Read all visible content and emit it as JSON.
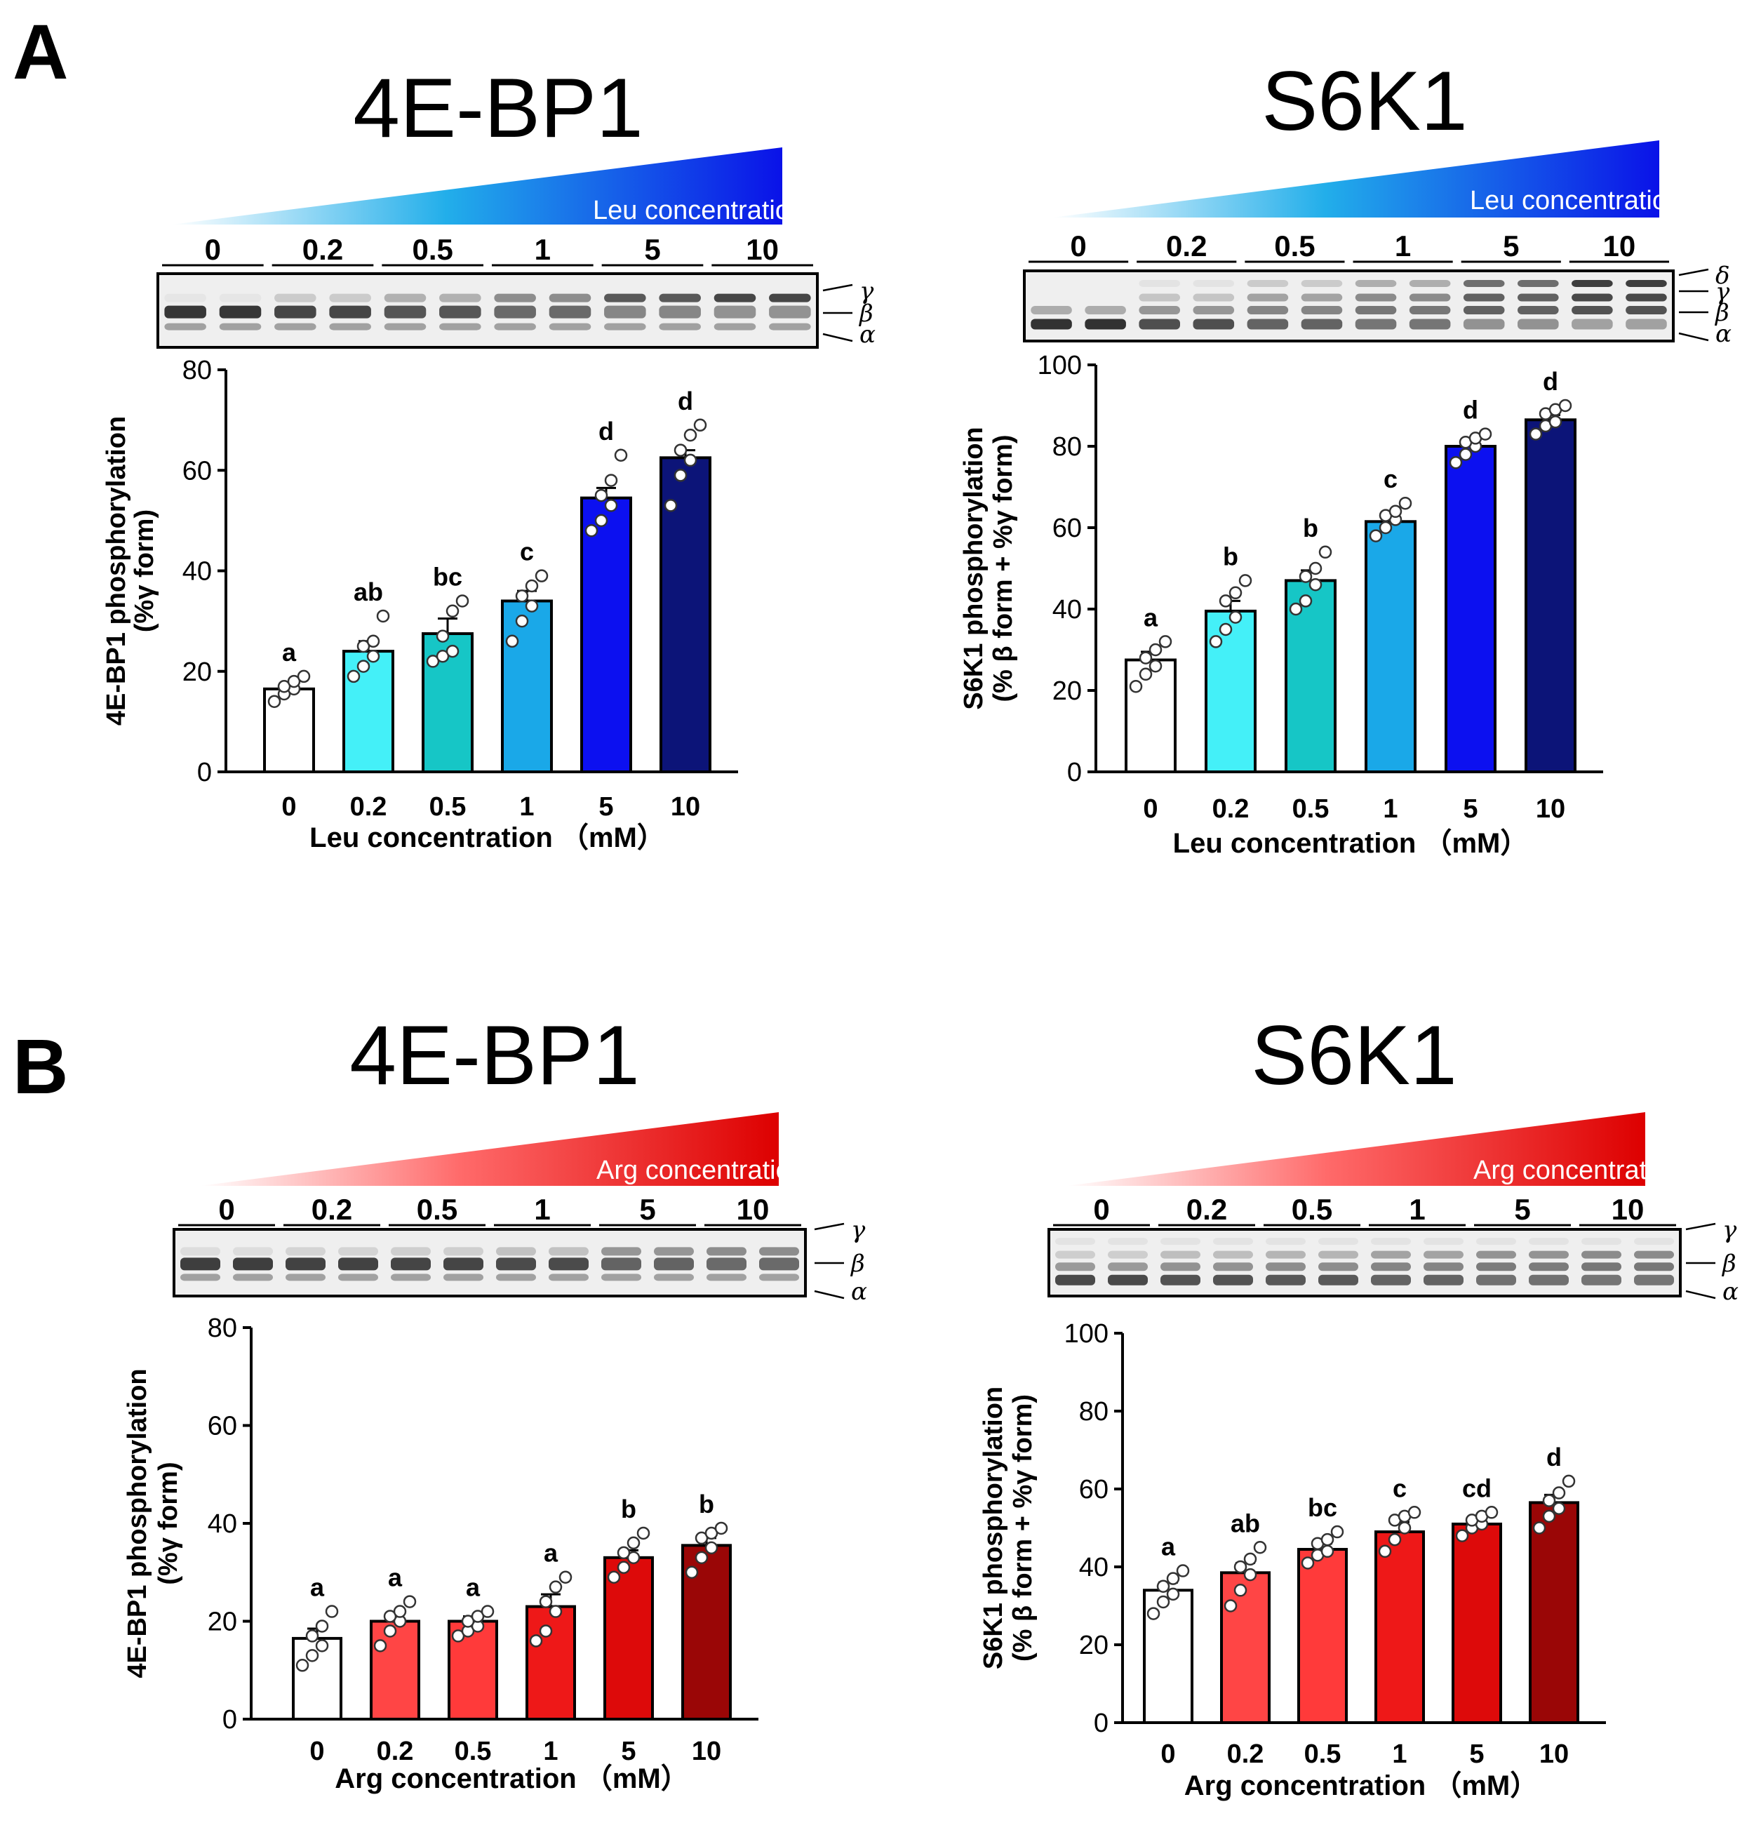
{
  "panel_labels": [
    "A",
    "B"
  ],
  "colors": {
    "leu_gradient": [
      "#ffffff",
      "#22aeea",
      "#0a12e8"
    ],
    "arg_gradient": [
      "#ffffff",
      "#ff6a6a",
      "#dd0000"
    ],
    "leu_bars": [
      "#ffffff",
      "#44f0f8",
      "#16c6c6",
      "#1aa8e8",
      "#0c10f0",
      "#0c1478"
    ],
    "arg_bars": [
      "#ffffff",
      "#ff4545",
      "#ff3a3a",
      "#ee1818",
      "#dd0a0a",
      "#9a0606"
    ]
  },
  "chart_data": [
    {
      "panel": "A",
      "type": "bar",
      "title": "4E-BP1",
      "wedge_label": "Leu concentration (mM)",
      "blot_groups": [
        "0",
        "0.2",
        "0.5",
        "1",
        "5",
        "10"
      ],
      "blot_forms": [
        "γ",
        "β",
        "α"
      ],
      "categories": [
        "0",
        "0.2",
        "0.5",
        "1",
        "5",
        "10"
      ],
      "values": [
        16.5,
        24,
        27.5,
        34,
        54.5,
        62.5
      ],
      "errors": [
        1,
        2,
        3,
        2,
        2,
        1.5
      ],
      "points": [
        [
          14,
          15.5,
          16.5,
          17,
          18,
          19
        ],
        [
          19,
          21,
          23,
          25,
          26,
          31
        ],
        [
          22,
          23,
          24,
          27,
          32,
          34
        ],
        [
          26,
          30,
          33,
          35,
          37,
          39
        ],
        [
          48,
          50,
          53,
          55,
          58,
          63
        ],
        [
          53,
          59,
          62,
          64,
          67,
          69
        ]
      ],
      "letters": [
        "a",
        "ab",
        "bc",
        "c",
        "d",
        "d"
      ],
      "ylim": [
        0,
        80
      ],
      "yticks": [
        0,
        20,
        40,
        60,
        80
      ],
      "ylabel_line1": "4E-BP1 phosphorylation",
      "ylabel_line2": "(%γ form)",
      "xlabel": "Leu concentration （mM）"
    },
    {
      "panel": "A",
      "type": "bar",
      "title": "S6K1",
      "wedge_label": "Leu concentration (mM)",
      "blot_groups": [
        "0",
        "0.2",
        "0.5",
        "1",
        "5",
        "10"
      ],
      "blot_forms": [
        "δ",
        "γ",
        "β",
        "α"
      ],
      "categories": [
        "0",
        "0.2",
        "0.5",
        "1",
        "5",
        "10"
      ],
      "values": [
        27.5,
        39.5,
        47,
        61.5,
        80,
        86.5
      ],
      "errors": [
        2,
        2.5,
        2.5,
        1.5,
        1,
        1.2
      ],
      "points": [
        [
          21,
          24,
          26,
          28,
          30,
          32
        ],
        [
          32,
          35,
          38,
          42,
          44,
          47
        ],
        [
          40,
          42,
          46,
          48,
          50,
          54
        ],
        [
          58,
          60,
          62,
          63,
          64,
          66
        ],
        [
          76,
          78,
          80,
          81,
          82,
          83
        ],
        [
          83,
          85,
          86,
          88,
          89,
          90
        ]
      ],
      "letters": [
        "a",
        "b",
        "b",
        "c",
        "d",
        "d"
      ],
      "ylim": [
        0,
        100
      ],
      "yticks": [
        0,
        20,
        40,
        60,
        80,
        100
      ],
      "ylabel_line1": "S6K1 phosphorylation",
      "ylabel_line2": "(% β form + %γ form)",
      "xlabel": "Leu concentration （mM）"
    },
    {
      "panel": "B",
      "type": "bar",
      "title": "4E-BP1",
      "wedge_label": "Arg concentration (mM)",
      "blot_groups": [
        "0",
        "0.2",
        "0.5",
        "1",
        "5",
        "10"
      ],
      "blot_forms": [
        "γ",
        "β",
        "α"
      ],
      "categories": [
        "0",
        "0.2",
        "0.5",
        "1",
        "5",
        "10"
      ],
      "values": [
        16.5,
        20,
        20,
        23,
        33,
        35.5
      ],
      "errors": [
        2,
        1.5,
        1,
        2.5,
        1.5,
        1.5
      ],
      "points": [
        [
          11,
          13,
          15,
          17,
          19,
          22
        ],
        [
          15,
          18,
          20,
          21,
          22,
          24
        ],
        [
          17,
          18,
          19,
          20,
          21,
          22
        ],
        [
          16,
          18,
          22,
          24,
          27,
          29
        ],
        [
          29,
          31,
          33,
          34,
          36,
          38
        ],
        [
          30,
          33,
          35,
          37,
          38,
          39
        ]
      ],
      "letters": [
        "a",
        "a",
        "a",
        "a",
        "b",
        "b"
      ],
      "ylim": [
        0,
        80
      ],
      "yticks": [
        0,
        20,
        40,
        60,
        80
      ],
      "ylabel_line1": "4E-BP1 phosphorylation",
      "ylabel_line2": "(%γ form)",
      "xlabel": "Arg concentration （mM）"
    },
    {
      "panel": "B",
      "type": "bar",
      "title": "S6K1",
      "wedge_label": "Arg concentration (mM)",
      "blot_groups": [
        "0",
        "0.2",
        "0.5",
        "1",
        "5",
        "10"
      ],
      "blot_forms": [
        "γ",
        "β",
        "α"
      ],
      "categories": [
        "0",
        "0.2",
        "0.5",
        "1",
        "5",
        "10"
      ],
      "values": [
        34,
        38.5,
        44.5,
        49,
        51,
        56.5
      ],
      "errors": [
        2,
        2.5,
        1.5,
        2.5,
        1.2,
        2
      ],
      "points": [
        [
          28,
          31,
          33,
          35,
          37,
          39
        ],
        [
          30,
          34,
          38,
          40,
          42,
          45
        ],
        [
          41,
          43,
          44,
          46,
          47,
          49
        ],
        [
          44,
          47,
          50,
          52,
          53,
          54
        ],
        [
          48,
          50,
          51,
          52,
          53,
          54
        ],
        [
          50,
          53,
          55,
          57,
          59,
          62
        ]
      ],
      "letters": [
        "a",
        "ab",
        "bc",
        "c",
        "cd",
        "d"
      ],
      "ylim": [
        0,
        100
      ],
      "yticks": [
        0,
        20,
        40,
        60,
        80,
        100
      ],
      "ylabel_line1": "S6K1 phosphorylation",
      "ylabel_line2": "(% β form + %γ form)",
      "xlabel": "Arg concentration （mM）"
    }
  ]
}
